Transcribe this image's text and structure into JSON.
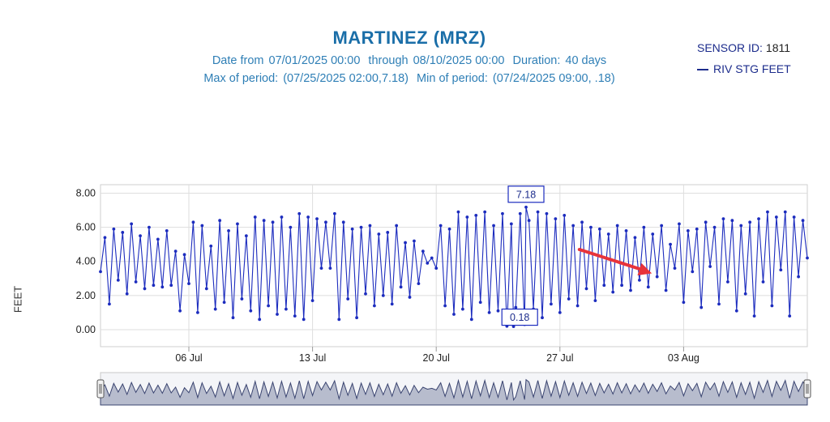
{
  "header": {
    "title": "MARTINEZ (MRZ)",
    "date_from_label": "Date from",
    "date_from": "07/01/2025 00:00",
    "through_label": "through",
    "through": "08/10/2025 00:00",
    "duration_label": "Duration:",
    "duration": "40 days",
    "max_label": "Max of period:",
    "max_value": "(07/25/2025 02:00,7.18)",
    "min_label": "Min of period:",
    "min_value": "(07/24/2025 09:00, .18)"
  },
  "legend": {
    "sensor_label": "SENSOR ID:",
    "sensor_id": "1811",
    "series_label": "RIV STG FEET"
  },
  "colors": {
    "series": "#1c2cbe",
    "title": "#1a6ea8",
    "subtitle": "#2f7fb6",
    "annotation_arrow": "#e8333a",
    "navigator_fill": "#b7bccd",
    "navigator_line": "#3a4470"
  },
  "chart_data": {
    "type": "line",
    "title": "MARTINEZ (MRZ)",
    "ylabel": "FEET",
    "series_name": "RIV STG FEET",
    "x_start": "07/01/2025 00:00",
    "x_end": "08/10/2025 00:00",
    "ylim": [
      -1.0,
      8.5
    ],
    "yticks": [
      "0.00",
      "2.00",
      "4.00",
      "6.00",
      "8.00"
    ],
    "ytick_values": [
      0,
      2,
      4,
      6,
      8
    ],
    "xticks": [
      "06 Jul",
      "13 Jul",
      "20 Jul",
      "27 Jul",
      "03 Aug"
    ],
    "xtick_days": [
      5,
      12,
      19,
      26,
      33
    ],
    "grid": true,
    "max": {
      "day": 24.083,
      "value": 7.18,
      "label": "7.18"
    },
    "min": {
      "day": 23.375,
      "value": 0.18,
      "label": "0.18"
    },
    "annotation": "red-arrow",
    "points": [
      [
        0.0,
        3.4
      ],
      [
        0.25,
        5.4
      ],
      [
        0.5,
        1.5
      ],
      [
        0.75,
        5.9
      ],
      [
        1.0,
        2.9
      ],
      [
        1.25,
        5.7
      ],
      [
        1.5,
        2.1
      ],
      [
        1.75,
        6.2
      ],
      [
        2.0,
        2.8
      ],
      [
        2.25,
        5.5
      ],
      [
        2.5,
        2.4
      ],
      [
        2.75,
        6.0
      ],
      [
        3.0,
        2.6
      ],
      [
        3.25,
        5.3
      ],
      [
        3.5,
        2.5
      ],
      [
        3.75,
        5.8
      ],
      [
        4.0,
        2.6
      ],
      [
        4.25,
        4.6
      ],
      [
        4.5,
        1.1
      ],
      [
        4.75,
        4.4
      ],
      [
        5.0,
        2.7
      ],
      [
        5.25,
        6.3
      ],
      [
        5.5,
        1.0
      ],
      [
        5.75,
        6.1
      ],
      [
        6.0,
        2.4
      ],
      [
        6.25,
        4.9
      ],
      [
        6.5,
        1.2
      ],
      [
        6.75,
        6.4
      ],
      [
        7.0,
        1.6
      ],
      [
        7.25,
        5.8
      ],
      [
        7.5,
        0.7
      ],
      [
        7.75,
        6.2
      ],
      [
        8.0,
        1.8
      ],
      [
        8.25,
        5.5
      ],
      [
        8.5,
        1.1
      ],
      [
        8.75,
        6.6
      ],
      [
        9.0,
        0.6
      ],
      [
        9.25,
        6.4
      ],
      [
        9.5,
        1.4
      ],
      [
        9.75,
        6.3
      ],
      [
        10.0,
        0.9
      ],
      [
        10.25,
        6.6
      ],
      [
        10.5,
        1.2
      ],
      [
        10.75,
        6.0
      ],
      [
        11.0,
        0.8
      ],
      [
        11.25,
        6.8
      ],
      [
        11.5,
        0.6
      ],
      [
        11.75,
        6.6
      ],
      [
        12.0,
        1.7
      ],
      [
        12.25,
        6.5
      ],
      [
        12.5,
        3.6
      ],
      [
        12.75,
        6.3
      ],
      [
        13.0,
        3.6
      ],
      [
        13.25,
        6.8
      ],
      [
        13.5,
        0.6
      ],
      [
        13.75,
        6.3
      ],
      [
        14.0,
        1.8
      ],
      [
        14.25,
        5.9
      ],
      [
        14.5,
        0.7
      ],
      [
        14.75,
        6.0
      ],
      [
        15.0,
        2.1
      ],
      [
        15.25,
        6.1
      ],
      [
        15.5,
        1.4
      ],
      [
        15.75,
        5.6
      ],
      [
        16.0,
        2.0
      ],
      [
        16.25,
        5.7
      ],
      [
        16.5,
        1.5
      ],
      [
        16.75,
        6.1
      ],
      [
        17.0,
        2.5
      ],
      [
        17.25,
        5.1
      ],
      [
        17.5,
        1.9
      ],
      [
        17.75,
        5.2
      ],
      [
        18.0,
        2.7
      ],
      [
        18.25,
        4.6
      ],
      [
        18.5,
        3.9
      ],
      [
        18.75,
        4.2
      ],
      [
        19.0,
        3.6
      ],
      [
        19.25,
        6.1
      ],
      [
        19.5,
        1.4
      ],
      [
        19.75,
        5.9
      ],
      [
        20.0,
        0.9
      ],
      [
        20.25,
        6.9
      ],
      [
        20.5,
        1.2
      ],
      [
        20.75,
        6.6
      ],
      [
        21.0,
        0.6
      ],
      [
        21.25,
        6.7
      ],
      [
        21.5,
        1.6
      ],
      [
        21.75,
        6.9
      ],
      [
        22.0,
        1.0
      ],
      [
        22.25,
        6.1
      ],
      [
        22.5,
        1.1
      ],
      [
        22.75,
        6.8
      ],
      [
        23.0,
        0.2
      ],
      [
        23.25,
        6.2
      ],
      [
        23.375,
        0.18
      ],
      [
        23.5,
        1.3
      ],
      [
        23.75,
        6.8
      ],
      [
        24.0,
        0.3
      ],
      [
        24.083,
        7.18
      ],
      [
        24.25,
        6.4
      ],
      [
        24.5,
        1.2
      ],
      [
        24.75,
        6.9
      ],
      [
        25.0,
        0.7
      ],
      [
        25.25,
        6.8
      ],
      [
        25.5,
        1.5
      ],
      [
        25.75,
        6.5
      ],
      [
        26.0,
        1.0
      ],
      [
        26.25,
        6.7
      ],
      [
        26.5,
        1.8
      ],
      [
        26.75,
        6.1
      ],
      [
        27.0,
        1.4
      ],
      [
        27.25,
        6.3
      ],
      [
        27.5,
        2.4
      ],
      [
        27.75,
        6.0
      ],
      [
        28.0,
        1.7
      ],
      [
        28.25,
        5.9
      ],
      [
        28.5,
        2.6
      ],
      [
        28.75,
        5.6
      ],
      [
        29.0,
        2.2
      ],
      [
        29.25,
        6.1
      ],
      [
        29.5,
        2.6
      ],
      [
        29.75,
        5.8
      ],
      [
        30.0,
        2.3
      ],
      [
        30.25,
        5.4
      ],
      [
        30.5,
        2.9
      ],
      [
        30.75,
        6.0
      ],
      [
        31.0,
        2.5
      ],
      [
        31.25,
        5.6
      ],
      [
        31.5,
        3.1
      ],
      [
        31.75,
        6.1
      ],
      [
        32.0,
        2.3
      ],
      [
        32.25,
        5.0
      ],
      [
        32.5,
        3.6
      ],
      [
        32.75,
        6.2
      ],
      [
        33.0,
        1.6
      ],
      [
        33.25,
        5.8
      ],
      [
        33.5,
        3.4
      ],
      [
        33.75,
        5.9
      ],
      [
        34.0,
        1.3
      ],
      [
        34.25,
        6.3
      ],
      [
        34.5,
        3.7
      ],
      [
        34.75,
        6.0
      ],
      [
        35.0,
        1.5
      ],
      [
        35.25,
        6.5
      ],
      [
        35.5,
        2.8
      ],
      [
        35.75,
        6.4
      ],
      [
        36.0,
        1.1
      ],
      [
        36.25,
        6.1
      ],
      [
        36.5,
        2.1
      ],
      [
        36.75,
        6.3
      ],
      [
        37.0,
        0.8
      ],
      [
        37.25,
        6.5
      ],
      [
        37.5,
        2.8
      ],
      [
        37.75,
        6.9
      ],
      [
        38.0,
        1.4
      ],
      [
        38.25,
        6.6
      ],
      [
        38.5,
        3.5
      ],
      [
        38.75,
        6.9
      ],
      [
        39.0,
        0.8
      ],
      [
        39.25,
        6.6
      ],
      [
        39.5,
        3.1
      ],
      [
        39.75,
        6.4
      ],
      [
        40.0,
        4.2
      ]
    ]
  }
}
